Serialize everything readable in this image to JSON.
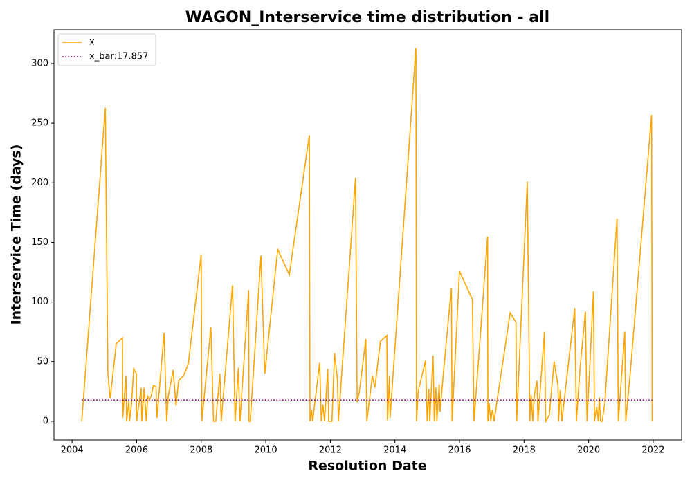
{
  "chart_data": {
    "type": "line",
    "title": "WAGON_Interservice time distribution - all",
    "x_label": "Resolution Date",
    "y_label": "Interservice Time (days)",
    "xlim": [
      2003.44,
      2022.88
    ],
    "ylim": [
      -15.7,
      328.4
    ],
    "xticks": [
      2004,
      2006,
      2008,
      2010,
      2012,
      2014,
      2016,
      2018,
      2020,
      2022
    ],
    "yticks": [
      0,
      50,
      100,
      150,
      200,
      250,
      300
    ],
    "grid": false,
    "legend": "upper left",
    "series": [
      {
        "name": "x",
        "color": "orange",
        "style": "solid",
        "x": [
          2004.3,
          2005.03,
          2005.11,
          2005.18,
          2005.37,
          2005.56,
          2005.57,
          2005.67,
          2005.69,
          2005.76,
          2005.78,
          2005.84,
          2005.91,
          2005.99,
          2006.0,
          2006.14,
          2006.16,
          2006.23,
          2006.3,
          2006.34,
          2006.4,
          2006.45,
          2006.52,
          2006.6,
          2006.63,
          2006.85,
          2006.93,
          2006.98,
          2007.13,
          2007.22,
          2007.3,
          2007.45,
          2007.6,
          2008.0,
          2008.02,
          2008.3,
          2008.38,
          2008.45,
          2008.58,
          2008.62,
          2008.97,
          2009.05,
          2009.15,
          2009.2,
          2009.47,
          2009.48,
          2009.52,
          2009.85,
          2009.97,
          2010.37,
          2010.73,
          2011.35,
          2011.37,
          2011.42,
          2011.45,
          2011.67,
          2011.72,
          2011.77,
          2011.82,
          2011.92,
          2011.95,
          2012.05,
          2012.13,
          2012.22,
          2012.25,
          2012.78,
          2012.83,
          2012.9,
          2013.1,
          2013.13,
          2013.3,
          2013.38,
          2013.55,
          2013.75,
          2013.77,
          2013.83,
          2013.85,
          2014.65,
          2014.67,
          2014.72,
          2014.95,
          2015.0,
          2015.05,
          2015.08,
          2015.18,
          2015.22,
          2015.27,
          2015.3,
          2015.37,
          2015.4,
          2015.5,
          2015.75,
          2015.77,
          2016.0,
          2016.4,
          2016.45,
          2016.87,
          2016.88,
          2016.92,
          2016.97,
          2017.02,
          2017.07,
          2017.57,
          2017.75,
          2017.77,
          2018.1,
          2018.18,
          2018.22,
          2018.27,
          2018.32,
          2018.4,
          2018.43,
          2018.63,
          2018.67,
          2018.78,
          2018.93,
          2019.05,
          2019.07,
          2019.12,
          2019.17,
          2019.57,
          2019.62,
          2019.73,
          2019.9,
          2019.95,
          2020.15,
          2020.18,
          2020.25,
          2020.3,
          2020.33,
          2020.37,
          2020.42,
          2020.5,
          2020.88,
          2020.92,
          2021.12,
          2021.15,
          2021.3,
          2021.95,
          2021.97
        ],
        "values": [
          0,
          263,
          40,
          19,
          65,
          70,
          3,
          38,
          0,
          17,
          0,
          14,
          44,
          40,
          0,
          28,
          0,
          28,
          0,
          21,
          18,
          21,
          30,
          29,
          3,
          74,
          0,
          21,
          43,
          13,
          34,
          38,
          48,
          140,
          0,
          79,
          0,
          0,
          40,
          0,
          114,
          0,
          45,
          0,
          110,
          0,
          0,
          139,
          40,
          144,
          123,
          240,
          0,
          10,
          0,
          49,
          0,
          14,
          0,
          44,
          0,
          0,
          57,
          35,
          0,
          204,
          16,
          25,
          69,
          0,
          38,
          28,
          67,
          72,
          1,
          38,
          3,
          313,
          0,
          25,
          51,
          0,
          27,
          0,
          55,
          0,
          28,
          0,
          31,
          8,
          40,
          112,
          0,
          126,
          102,
          0,
          155,
          0,
          15,
          0,
          10,
          0,
          91,
          83,
          0,
          201,
          0,
          22,
          0,
          22,
          34,
          0,
          75,
          0,
          5,
          50,
          30,
          0,
          26,
          0,
          95,
          0,
          43,
          92,
          0,
          109,
          0,
          12,
          0,
          20,
          0,
          0,
          15,
          170,
          0,
          75,
          0,
          44,
          257,
          0
        ]
      },
      {
        "name": "x_bar:17.857",
        "color": "purple",
        "style": "dotted",
        "x": [
          2004.3,
          2021.97
        ],
        "values": [
          17.857,
          17.857
        ]
      }
    ]
  }
}
